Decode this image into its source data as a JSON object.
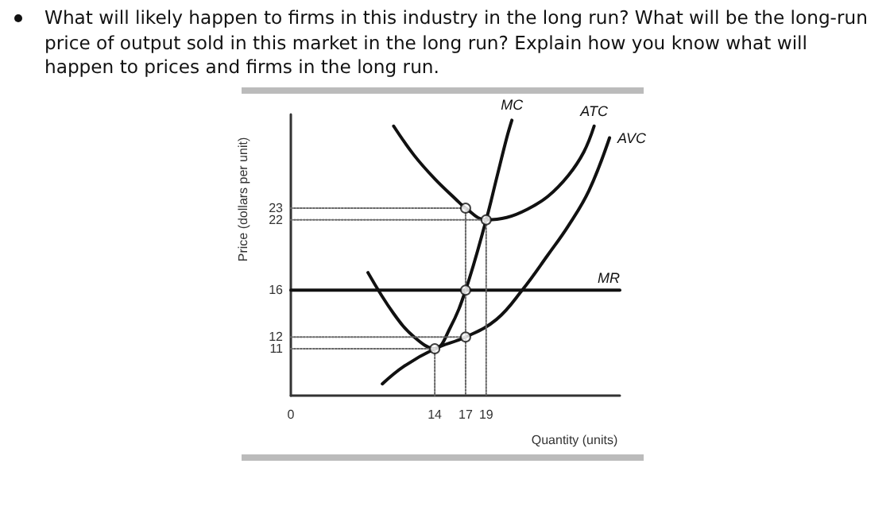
{
  "chart_data": {
    "type": "line",
    "title": "What will likely happen to firms in this industry in the long run? What will be the long-run price of output sold in this market in the long run? Explain how you know what will happen to prices and firms in the long run.",
    "xlabel": "Quantity (units)",
    "ylabel": "Price (dollars per unit)",
    "xlim": [
      0,
      32
    ],
    "xticks": [
      0,
      14,
      17,
      19
    ],
    "ylim": [
      7,
      31
    ],
    "yticks": [
      11,
      12,
      16,
      22,
      23
    ],
    "grid": false,
    "legend": false,
    "marker": "none",
    "line_style": "solid",
    "series": [
      {
        "name": "MC",
        "color": "#111111",
        "x": [
          7.5,
          10,
          12,
          14,
          15.5,
          17,
          19,
          20,
          21,
          21.5
        ],
        "values": [
          17.5,
          14,
          12,
          11,
          12.8,
          16,
          22,
          25.5,
          29,
          30.5
        ]
      },
      {
        "name": "ATC",
        "color": "#111111",
        "x": [
          10,
          12,
          14,
          16,
          17,
          19,
          21,
          23,
          25,
          27,
          28.5,
          29.5
        ],
        "values": [
          30,
          27.5,
          25.5,
          23.8,
          23,
          22,
          22.2,
          22.9,
          24,
          25.8,
          27.8,
          30
        ]
      },
      {
        "name": "AVC",
        "color": "#111111",
        "x": [
          8.9,
          11,
          14,
          17,
          20,
          22.5,
          25,
          27,
          29,
          31
        ],
        "values": [
          8,
          9.5,
          11,
          12,
          13.5,
          16,
          19,
          21.5,
          24.5,
          29
        ]
      },
      {
        "name": "MR",
        "color": "#111111",
        "x": [
          0,
          32
        ],
        "values": [
          16,
          16
        ]
      },
      {
        "type": "line",
        "color": "#666666",
        "line_style": "dotted",
        "x": [
          0,
          17,
          17
        ],
        "values": [
          23,
          23,
          7
        ]
      },
      {
        "type": "line",
        "color": "#666666",
        "line_style": "dotted",
        "x": [
          0,
          19,
          19
        ],
        "values": [
          22,
          22,
          7
        ]
      },
      {
        "type": "line",
        "color": "#666666",
        "line_style": "dotted",
        "x": [
          0,
          17
        ],
        "values": [
          12,
          12
        ]
      },
      {
        "type": "line",
        "color": "#666666",
        "line_style": "dotted",
        "x": [
          0,
          14,
          14
        ],
        "values": [
          11,
          11,
          7
        ]
      },
      {
        "type": "scatter",
        "color": "#111111",
        "marker": "circle",
        "x": [
          14,
          17,
          17,
          17,
          19
        ],
        "values": [
          11,
          12,
          16,
          23,
          22
        ]
      }
    ]
  }
}
